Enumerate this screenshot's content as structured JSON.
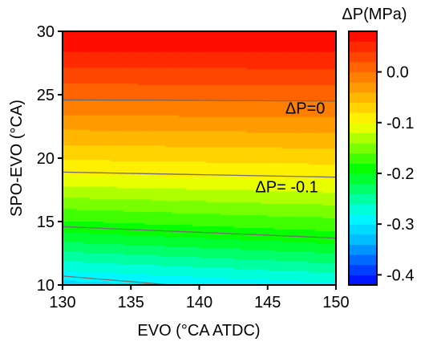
{
  "chart_data": {
    "type": "heatmap",
    "xlabel": "EVO (°CA ATDC)",
    "ylabel": "SPO-EVO (°CA)",
    "xlim": [
      130,
      150
    ],
    "ylim": [
      10,
      30
    ],
    "x_ticks": [
      "130",
      "135",
      "140",
      "145",
      "150"
    ],
    "y_ticks": [
      "10",
      "15",
      "20",
      "25",
      "30"
    ],
    "colorbar": {
      "title": "ΔP(MPa)",
      "range": [
        -0.42,
        0.08
      ],
      "ticks": [
        "0.0",
        "-0.1",
        "-0.2",
        "-0.3",
        "-0.4"
      ],
      "tick_values": [
        0.0,
        -0.1,
        -0.2,
        -0.3,
        -0.4
      ],
      "levels": 25,
      "colors": [
        "#0000ff",
        "#0060ff",
        "#00c0ff",
        "#00ffff",
        "#00ff80",
        "#00ff00",
        "#80ff00",
        "#ffff00",
        "#ffc000",
        "#ff8000",
        "#ff4000",
        "#ff0000"
      ]
    },
    "isolines": [
      {
        "value": 0.0,
        "points": [
          [
            130,
            24.6
          ],
          [
            150,
            24.5
          ]
        ]
      },
      {
        "value": -0.1,
        "points": [
          [
            130,
            18.9
          ],
          [
            150,
            18.5
          ]
        ]
      },
      {
        "value": -0.2,
        "points": [
          [
            130,
            14.6
          ],
          [
            150,
            13.7
          ]
        ]
      },
      {
        "value": -0.3,
        "points": [
          [
            130,
            10.7
          ],
          [
            138,
            10.0
          ]
        ]
      }
    ],
    "annotations": [
      {
        "text": "ΔP=0",
        "x": 146.3,
        "y": 23.5
      },
      {
        "text": "ΔP= -0.1",
        "x": 144.1,
        "y": 17.3
      }
    ],
    "field_model": {
      "y_at_zero": 24.55,
      "y_at_minus01": 18.7,
      "y_at_minus02": 14.15,
      "y_at_minus03": 10.35
    }
  }
}
